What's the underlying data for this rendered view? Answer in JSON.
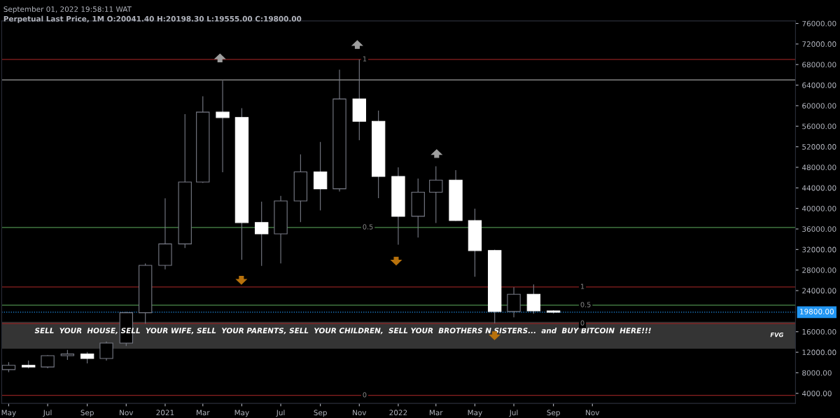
{
  "chart_data": {
    "type": "candlestick",
    "title": "Perpetual Last Price, 1M O:20041.40 H:20198.30 L:19555.00 C:19800.00",
    "subtitle": "September 01, 2022 19:58:11 WAT",
    "x": [
      "2020-05",
      "2020-06",
      "2020-07",
      "2020-08",
      "2020-09",
      "2020-10",
      "2020-11",
      "2020-12",
      "2021-01",
      "2021-02",
      "2021-03",
      "2021-04",
      "2021-05",
      "2021-06",
      "2021-07",
      "2021-08",
      "2021-09",
      "2021-10",
      "2021-11",
      "2021-12",
      "2022-01",
      "2022-02",
      "2022-03",
      "2022-04",
      "2022-05",
      "2022-06",
      "2022-07",
      "2022-08",
      "2022-09"
    ],
    "ohlc": [
      [
        8620,
        10070,
        8120,
        9450
      ],
      [
        9450,
        10380,
        8830,
        9140
      ],
      [
        9140,
        11440,
        8890,
        11340
      ],
      [
        11340,
        12470,
        10520,
        11650
      ],
      [
        11650,
        12050,
        9830,
        10780
      ],
      [
        10780,
        14100,
        10380,
        13790
      ],
      [
        13790,
        19860,
        13200,
        19700
      ],
      [
        19700,
        29300,
        17570,
        28920
      ],
      [
        28920,
        41950,
        28130,
        33090
      ],
      [
        33090,
        58350,
        32300,
        45140
      ],
      [
        45140,
        61840,
        44950,
        58740
      ],
      [
        58740,
        64850,
        47040,
        57690
      ],
      [
        57690,
        59500,
        30000,
        37250
      ],
      [
        37250,
        41330,
        28800,
        35050
      ],
      [
        35050,
        42450,
        29280,
        41460
      ],
      [
        41460,
        50500,
        37330,
        47100
      ],
      [
        47100,
        52920,
        39600,
        43820
      ],
      [
        43820,
        67000,
        43280,
        61300
      ],
      [
        61300,
        69000,
        53260,
        56950
      ],
      [
        56950,
        59050,
        42000,
        46220
      ],
      [
        46220,
        47990,
        32920,
        38470
      ],
      [
        38470,
        45820,
        34320,
        43160
      ],
      [
        43160,
        48190,
        37160,
        45510
      ],
      [
        45510,
        47440,
        37580,
        37630
      ],
      [
        37630,
        39970,
        26700,
        31800
      ],
      [
        31800,
        31990,
        17620,
        19940
      ],
      [
        19940,
        24670,
        18780,
        23290
      ],
      [
        23290,
        25210,
        19520,
        20050
      ],
      [
        20041.4,
        20198.3,
        19555.0,
        19800.0
      ]
    ],
    "colors": [
      "#787b86",
      "#ffffff",
      "#787b86",
      "#787b86",
      "#ffffff",
      "#787b86",
      "#787b86",
      "#787b86",
      "#787b86",
      "#787b86",
      "#787b86",
      "#ffffff",
      "#ffffff",
      "#ffffff",
      "#787b86",
      "#787b86",
      "#ffffff",
      "#787b86",
      "#ffffff",
      "#ffffff",
      "#ffffff",
      "#787b86",
      "#787b86",
      "#ffffff",
      "#ffffff",
      "#ffffff",
      "#787b86",
      "#ffffff",
      "#ffffff"
    ],
    "xlim": [
      "2020-04-20",
      "2023-09-15"
    ],
    "xticks": [
      {
        "value": "2020-05-01",
        "label": "May"
      },
      {
        "value": "2020-07-01",
        "label": "Jul"
      },
      {
        "value": "2020-09-01",
        "label": "Sep"
      },
      {
        "value": "2020-11-01",
        "label": "Nov"
      },
      {
        "value": "2021-01-01",
        "label": "2021"
      },
      {
        "value": "2021-03-01",
        "label": "Mar"
      },
      {
        "value": "2021-05-01",
        "label": "May"
      },
      {
        "value": "2021-07-01",
        "label": "Jul"
      },
      {
        "value": "2021-09-01",
        "label": "Sep"
      },
      {
        "value": "2021-11-01",
        "label": "Nov"
      },
      {
        "value": "2022-01-01",
        "label": "2022"
      },
      {
        "value": "2022-03-01",
        "label": "Mar"
      },
      {
        "value": "2022-05-01",
        "label": "May"
      },
      {
        "value": "2022-07-01",
        "label": "Jul"
      },
      {
        "value": "2022-09-01",
        "label": "Sep"
      },
      {
        "value": "2022-11-01",
        "label": "Nov"
      }
    ],
    "ylim": [
      2050,
      76500
    ],
    "yticks": [
      {
        "value": 4000,
        "label": "4000.00"
      },
      {
        "value": 8000,
        "label": "8000.00"
      },
      {
        "value": 12000,
        "label": "12000.00"
      },
      {
        "value": 16000,
        "label": "16000.00"
      },
      {
        "value": 24000,
        "label": "24000.00"
      },
      {
        "value": 28000,
        "label": "28000.00"
      },
      {
        "value": 32000,
        "label": "32000.00"
      },
      {
        "value": 36000,
        "label": "36000.00"
      },
      {
        "value": 40000,
        "label": "40000.00"
      },
      {
        "value": 44000,
        "label": "44000.00"
      },
      {
        "value": 48000,
        "label": "48000.00"
      },
      {
        "value": 52000,
        "label": "52000.00"
      },
      {
        "value": 56000,
        "label": "56000.00"
      },
      {
        "value": 60000,
        "label": "60000.00"
      },
      {
        "value": 64000,
        "label": "64000.00"
      },
      {
        "value": 68000,
        "label": "68000.00"
      },
      {
        "value": 72000,
        "label": "72000.00"
      },
      {
        "value": 76000,
        "label": "76000.00"
      }
    ],
    "ref_lines": [
      {
        "axis": "y",
        "value": 69000,
        "color": "#8b2020",
        "line_style": "solid"
      },
      {
        "axis": "y",
        "value": 36300,
        "color": "#4c8c4c",
        "line_style": "solid"
      },
      {
        "axis": "y",
        "value": 3600,
        "color": "#8b2020",
        "line_style": "solid"
      },
      {
        "axis": "y",
        "value": 24700,
        "color": "#8b2020",
        "line_style": "solid"
      },
      {
        "axis": "y",
        "value": 21150,
        "color": "#4c8c4c",
        "line_style": "solid"
      },
      {
        "axis": "y",
        "value": 17600,
        "color": "#8b2020",
        "line_style": "solid"
      },
      {
        "axis": "y",
        "value": 65000,
        "color": "#9e9e9e",
        "line_style": "solid"
      },
      {
        "axis": "y",
        "value": 19800,
        "label": "19800.00",
        "color": "#2196f3",
        "line_style": "dotted"
      }
    ],
    "bands": [
      {
        "axis": "y",
        "from": 12700,
        "to": 17900,
        "label": "FVG",
        "color": "#3a3a3a"
      }
    ],
    "annotations": [
      {
        "text": "1",
        "x": "2021-11-06",
        "y": 69000
      },
      {
        "text": "0.5",
        "x": "2021-11-06",
        "y": 36300
      },
      {
        "text": "0",
        "x": "2021-11-06",
        "y": 3600
      },
      {
        "text": "1",
        "x": "2022-10-13",
        "y": 24700
      },
      {
        "text": "0.5",
        "x": "2022-10-13",
        "y": 21150
      },
      {
        "text": "0",
        "x": "2022-10-13",
        "y": 17600
      },
      "SELL  YOUR  HOUSE, SELL  YOUR WIFE, SELL  YOUR PARENTS, SELL  YOUR CHILDREN,  SELL YOUR  BROTHERS N SISTERS...  and  BUY BITCOIN  HERE!!!"
    ],
    "grid": false
  }
}
